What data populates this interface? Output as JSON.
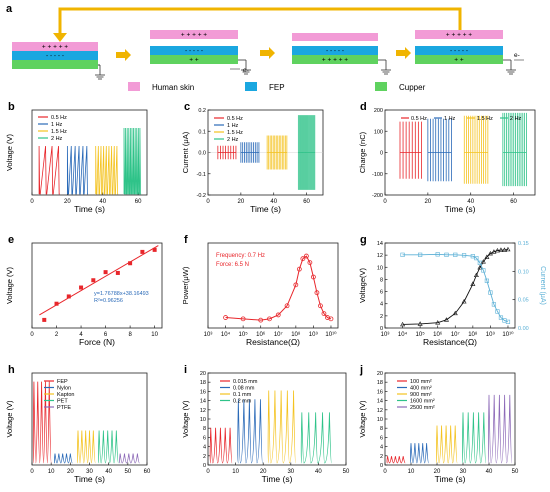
{
  "colors": {
    "skin": "#f29bd6",
    "fep": "#1aa7e0",
    "copper": "#5fd25f",
    "arrow": "#f0b400",
    "red": "#e8262b",
    "blue": "#2a6ab8",
    "yellow": "#f4c320",
    "green": "#2fc389",
    "purple": "#8d6ab8",
    "cyan": "#5bb0d6"
  },
  "panel_a": {
    "letter": "a",
    "legend": [
      {
        "name": "Human skin",
        "color": "#f29bd6"
      },
      {
        "name": "FEP",
        "color": "#1aa7e0"
      },
      {
        "name": "Cupper",
        "color": "#5fd25f"
      }
    ],
    "electron_label": "e-",
    "plus_five": "+ + + + +",
    "minus_five": "- - - - -",
    "plus_two": "+ +"
  },
  "chart_data": [
    {
      "panel": "b",
      "type": "line",
      "xlabel": "Time (s)",
      "ylabel": "Voltage (V)",
      "xticks": [
        "0",
        "20",
        "40",
        "60"
      ],
      "xlim": [
        0,
        65
      ],
      "series": [
        {
          "name": "0.5 Hz",
          "color": "#e8262b",
          "x_range": [
            4,
            15
          ],
          "peaks": 4
        },
        {
          "name": "1 Hz",
          "color": "#2a6ab8",
          "x_range": [
            20,
            31
          ],
          "peaks": 6
        },
        {
          "name": "1.5 Hz",
          "color": "#f4c320",
          "x_range": [
            36,
            48
          ],
          "peaks": 9
        },
        {
          "name": "2 Hz",
          "color": "#2fc389",
          "x_range": [
            52,
            61
          ],
          "peaks": 11
        }
      ]
    },
    {
      "panel": "c",
      "type": "line",
      "xlabel": "Time (s)",
      "ylabel": "Current (μA)",
      "xticks": [
        "0",
        "20",
        "40",
        "60"
      ],
      "yticks": [
        "0.2",
        "0.1",
        "0.0",
        "-0.1",
        "-0.2"
      ],
      "ylim": [
        -0.25,
        0.25
      ],
      "series": [
        {
          "name": "0.5 Hz",
          "color": "#e8262b",
          "x_range": [
            6,
            17
          ]
        },
        {
          "name": "1 Hz",
          "color": "#2a6ab8",
          "x_range": [
            20,
            31
          ]
        },
        {
          "name": "1.5 Hz",
          "color": "#f4c320",
          "x_range": [
            36,
            48
          ]
        },
        {
          "name": "2 Hz",
          "color": "#2fc389",
          "x_range": [
            55,
            65
          ]
        }
      ]
    },
    {
      "panel": "d",
      "type": "line",
      "xlabel": "Time (s)",
      "ylabel": "Charge (nC)",
      "xticks": [
        "0",
        "20",
        "40",
        "60"
      ],
      "yticks": [
        "200",
        "100",
        "0",
        "-100",
        "-200"
      ],
      "ylim": [
        -220,
        220
      ],
      "series": [
        {
          "name": "0.5 Hz",
          "color": "#e8262b"
        },
        {
          "name": "1 Hz",
          "color": "#2a6ab8"
        },
        {
          "name": "1.5 Hz",
          "color": "#f4c320"
        },
        {
          "name": "2 Hz",
          "color": "#2fc389"
        }
      ]
    },
    {
      "panel": "e",
      "type": "scatter",
      "xlabel": "Force (N)",
      "ylabel": "Voltage (V)",
      "xticks": [
        "0",
        "2",
        "4",
        "6",
        "8",
        "10"
      ],
      "xlim": [
        0,
        10.6
      ],
      "ylim": [
        36,
        57
      ],
      "x": [
        1,
        2,
        3,
        4,
        5,
        6,
        7,
        8,
        9,
        10
      ],
      "y": [
        38,
        42,
        43.8,
        46,
        47.8,
        49.8,
        49.6,
        52,
        54.8,
        55.3
      ],
      "fit": "y=1.76788x+38.16493",
      "r2": "R²=0.96256"
    },
    {
      "panel": "f",
      "type": "line",
      "xlabel": "Resistance(Ω)",
      "ylabel": "Power(μW)",
      "xticks": [
        "10³",
        "10⁴",
        "10⁵",
        "10⁶",
        "10⁷",
        "10⁸",
        "10⁹",
        "10¹⁰"
      ],
      "xlim": [
        3,
        10.4
      ],
      "ylim": [
        -0.05,
        0.6
      ],
      "x_log": [
        4,
        5,
        6,
        6.5,
        7,
        7.5,
        8,
        8.2,
        8.4,
        8.6,
        8.8,
        9,
        9.2,
        9.4,
        9.6,
        9.8,
        10
      ],
      "y": [
        0.03,
        0.02,
        0.01,
        0.02,
        0.05,
        0.12,
        0.28,
        0.4,
        0.48,
        0.5,
        0.45,
        0.34,
        0.22,
        0.12,
        0.06,
        0.03,
        0.02
      ],
      "annotations": [
        "Frequency: 0.7 Hz",
        "Force: 6.5 N"
      ]
    },
    {
      "panel": "g",
      "type": "line",
      "xlabel": "Resistance(Ω)",
      "ylabel": "Voltage(V)",
      "ylabel_right": "Current (μA)",
      "xticks": [
        "10³",
        "10⁴",
        "10⁵",
        "10⁶",
        "10⁷",
        "10⁸",
        "10⁹",
        "10¹⁰"
      ],
      "yticks": [
        "0",
        "2",
        "4",
        "6",
        "8",
        "10",
        "12",
        "14"
      ],
      "yticks_right": [
        "0.00",
        "0.05",
        "0.10",
        "0.15"
      ],
      "xlim": [
        3,
        10.4
      ],
      "ylim": [
        -0.5,
        14
      ],
      "ylim_right": [
        -0.01,
        0.17
      ],
      "x_log": [
        4,
        5,
        6,
        6.5,
        7,
        7.5,
        8,
        8.2,
        8.4,
        8.6,
        8.8,
        9,
        9.2,
        9.4,
        9.6,
        9.8,
        10
      ],
      "voltage": [
        0.1,
        0.2,
        0.4,
        0.9,
        2,
        4,
        7,
        8.5,
        9.8,
        10.8,
        11.6,
        12.2,
        12.5,
        12.7,
        12.8,
        12.8,
        12.9
      ],
      "current": [
        0.145,
        0.145,
        0.146,
        0.145,
        0.145,
        0.144,
        0.142,
        0.138,
        0.128,
        0.112,
        0.09,
        0.065,
        0.04,
        0.025,
        0.012,
        0.006,
        0.003
      ]
    },
    {
      "panel": "h",
      "type": "line",
      "xlabel": "Time (s)",
      "ylabel": "Voltage (V)",
      "xticks": [
        "0",
        "10",
        "20",
        "30",
        "40",
        "50",
        "60"
      ],
      "series": [
        {
          "name": "FEP",
          "color": "#e8262b",
          "x_range": [
            1,
            9
          ],
          "amp": 14.5
        },
        {
          "name": "Nylon",
          "color": "#2a6ab8",
          "x_range": [
            12,
            20
          ],
          "amp": 2
        },
        {
          "name": "Kapton",
          "color": "#f4c320",
          "x_range": [
            24,
            32
          ],
          "amp": 6
        },
        {
          "name": "PET",
          "color": "#2fc389",
          "x_range": [
            35,
            44
          ],
          "amp": 6
        },
        {
          "name": "PTFE",
          "color": "#8d6ab8",
          "x_range": [
            46,
            55
          ],
          "amp": 2
        }
      ]
    },
    {
      "panel": "i",
      "type": "line",
      "xlabel": "Time (s)",
      "ylabel": "Voltage (V)",
      "xticks": [
        "0",
        "10",
        "20",
        "30",
        "40",
        "50"
      ],
      "yticks": [
        "0",
        "2",
        "4",
        "6",
        "8",
        "10",
        "12",
        "14",
        "16",
        "18",
        "20"
      ],
      "ylim": [
        0,
        21
      ],
      "series": [
        {
          "name": "0.015 mm",
          "color": "#e8262b",
          "x_range": [
            1,
            8
          ],
          "amp": 8.5
        },
        {
          "name": "0.08 mm",
          "color": "#2a6ab8",
          "x_range": [
            11,
            19
          ],
          "amp": 15
        },
        {
          "name": "0.1 mm",
          "color": "#f4c320",
          "x_range": [
            22,
            31
          ],
          "amp": 17
        },
        {
          "name": "0.2 mm",
          "color": "#2fc389",
          "x_range": [
            34,
            44
          ],
          "amp": 12
        }
      ]
    },
    {
      "panel": "j",
      "type": "line",
      "xlabel": "Time (s)",
      "ylabel": "Voltage (V)",
      "xticks": [
        "0",
        "10",
        "20",
        "30",
        "40",
        "50"
      ],
      "yticks": [
        "0",
        "2",
        "4",
        "6",
        "8",
        "10",
        "12",
        "14",
        "16",
        "18",
        "20"
      ],
      "ylim": [
        0,
        21
      ],
      "series": [
        {
          "name": "100 mm²",
          "color": "#e8262b",
          "x_range": [
            1,
            7
          ],
          "amp": 2
        },
        {
          "name": "400 mm²",
          "color": "#2a6ab8",
          "x_range": [
            10,
            16
          ],
          "amp": 5
        },
        {
          "name": "900 mm²",
          "color": "#f4c320",
          "x_range": [
            20,
            27
          ],
          "amp": 9
        },
        {
          "name": "1600 mm²",
          "color": "#2fc389",
          "x_range": [
            30,
            38
          ],
          "amp": 12
        },
        {
          "name": "2500 mm²",
          "color": "#8d6ab8",
          "x_range": [
            40,
            48
          ],
          "amp": 16
        }
      ]
    }
  ]
}
